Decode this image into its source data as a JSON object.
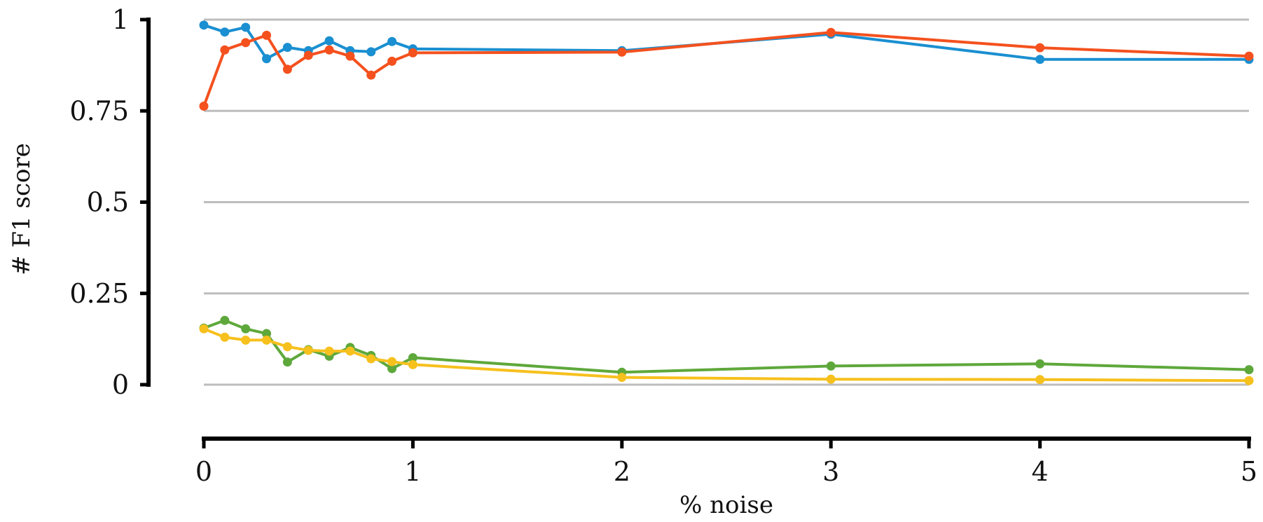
{
  "chart_data": {
    "type": "line",
    "title": "",
    "xlabel": "% noise",
    "ylabel": "# F1 score",
    "xlim": [
      0,
      5
    ],
    "ylim": [
      0,
      1
    ],
    "xticks": [
      "0",
      "1",
      "2",
      "3",
      "4",
      "5"
    ],
    "yticks": [
      "0",
      "0.25",
      "0.5",
      "0.75",
      "1"
    ],
    "grid": "horizontal",
    "legend": "none",
    "x": [
      0,
      0.1,
      0.2,
      0.3,
      0.4,
      0.5,
      0.6,
      0.7,
      0.8,
      0.9,
      1,
      2,
      3,
      4,
      5
    ],
    "series": [
      {
        "color": "#1a8fd1",
        "values": [
          0.985,
          0.966,
          0.979,
          0.893,
          0.924,
          0.915,
          0.942,
          0.915,
          0.912,
          0.94,
          0.92,
          0.915,
          0.96,
          0.891,
          0.891
        ]
      },
      {
        "color": "#f4511e",
        "values": [
          0.763,
          0.917,
          0.937,
          0.957,
          0.864,
          0.902,
          0.917,
          0.9,
          0.848,
          0.886,
          0.909,
          0.911,
          0.965,
          0.923,
          0.9
        ]
      },
      {
        "color": "#5ea83b",
        "values": [
          0.155,
          0.176,
          0.153,
          0.14,
          0.062,
          0.096,
          0.078,
          0.102,
          0.08,
          0.044,
          0.074,
          0.034,
          0.051,
          0.057,
          0.041
        ]
      },
      {
        "color": "#f6c01d",
        "values": [
          0.153,
          0.13,
          0.122,
          0.122,
          0.104,
          0.094,
          0.092,
          0.092,
          0.071,
          0.063,
          0.055,
          0.02,
          0.015,
          0.014,
          0.011
        ]
      }
    ]
  }
}
